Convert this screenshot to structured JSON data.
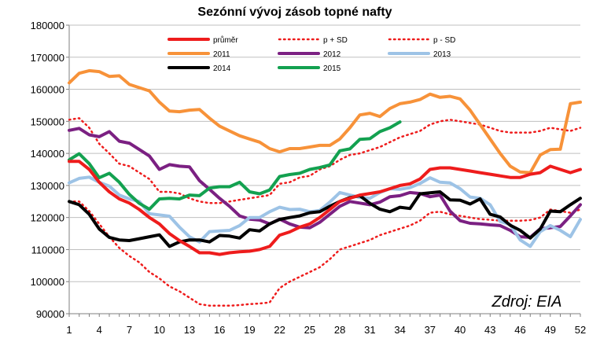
{
  "chart_data": {
    "type": "line",
    "title": "Sezónní vývoj zásob topné nafty",
    "xlabel": "",
    "ylabel": "",
    "xlim": [
      1,
      52
    ],
    "ylim": [
      90000,
      180000
    ],
    "x_ticks": [
      1,
      4,
      7,
      10,
      13,
      16,
      19,
      22,
      25,
      28,
      31,
      34,
      37,
      40,
      43,
      46,
      49,
      52
    ],
    "y_ticks": [
      90000,
      100000,
      110000,
      120000,
      130000,
      140000,
      150000,
      160000,
      170000,
      180000
    ],
    "y_tick_labels": [
      "90000",
      "100000",
      "110000",
      "120000",
      "130000",
      "140000",
      "150000",
      "160000",
      "170000",
      "180000"
    ],
    "grid": "horizontal",
    "legend_position": "top",
    "source": "Zdroj: EIA",
    "series": [
      {
        "name": "průměr",
        "color": "#ee1c1c",
        "style": "solid",
        "x": [
          1,
          2,
          3,
          4,
          5,
          6,
          7,
          8,
          9,
          10,
          11,
          12,
          13,
          14,
          15,
          16,
          17,
          18,
          19,
          20,
          21,
          22,
          23,
          24,
          25,
          26,
          27,
          28,
          29,
          30,
          31,
          32,
          33,
          34,
          35,
          36,
          37,
          38,
          39,
          40,
          41,
          42,
          43,
          44,
          45,
          46,
          47,
          48,
          49,
          50,
          51,
          52
        ],
        "values": [
          137500,
          137500,
          135000,
          131000,
          128000,
          125800,
          124500,
          122500,
          120000,
          118000,
          115000,
          112800,
          111000,
          109000,
          109000,
          108500,
          109000,
          109300,
          109500,
          110000,
          111000,
          114500,
          115500,
          117000,
          118000,
          120000,
          122500,
          125000,
          126000,
          127000,
          127500,
          128000,
          129000,
          130000,
          130500,
          132000,
          135000,
          135500,
          135500,
          135000,
          134500,
          134000,
          133500,
          133000,
          132500,
          132500,
          133500,
          134000,
          136000,
          135000,
          134000,
          135000
        ]
      },
      {
        "name": "p + SD",
        "color": "#ee1c1c",
        "style": "dotted",
        "x": [
          1,
          2,
          3,
          4,
          5,
          6,
          7,
          8,
          9,
          10,
          11,
          12,
          13,
          14,
          15,
          16,
          17,
          18,
          19,
          20,
          21,
          22,
          23,
          24,
          25,
          26,
          27,
          28,
          29,
          30,
          31,
          32,
          33,
          34,
          35,
          36,
          37,
          38,
          39,
          40,
          41,
          42,
          43,
          44,
          45,
          46,
          47,
          48,
          49,
          50,
          51,
          52
        ],
        "values": [
          150500,
          151000,
          148000,
          143000,
          140000,
          136800,
          136000,
          134000,
          132000,
          128000,
          128000,
          127500,
          126000,
          125000,
          124500,
          124500,
          125000,
          125500,
          126000,
          126500,
          127000,
          130500,
          131000,
          132500,
          133000,
          135000,
          136000,
          138000,
          139500,
          140000,
          141000,
          142000,
          143500,
          145000,
          146000,
          147000,
          149000,
          150000,
          150500,
          150000,
          149500,
          149000,
          148000,
          147000,
          146500,
          146500,
          146500,
          147000,
          148000,
          147500,
          147000,
          148000
        ]
      },
      {
        "name": "p - SD",
        "color": "#ee1c1c",
        "style": "dotted",
        "x": [
          1,
          2,
          3,
          4,
          5,
          6,
          7,
          8,
          9,
          10,
          11,
          12,
          13,
          14,
          15,
          16,
          17,
          18,
          19,
          20,
          21,
          22,
          23,
          24,
          25,
          26,
          27,
          28,
          29,
          30,
          31,
          32,
          33,
          34,
          35,
          36,
          37,
          38,
          39,
          40,
          41,
          42,
          43,
          44,
          45,
          46,
          47,
          48,
          49,
          50,
          51,
          52
        ],
        "values": [
          125000,
          125000,
          122000,
          118000,
          114000,
          110500,
          108000,
          106000,
          103000,
          101000,
          98500,
          97000,
          95000,
          93000,
          92500,
          92500,
          92500,
          92700,
          93000,
          93200,
          93500,
          98000,
          100000,
          101500,
          103000,
          104500,
          107000,
          110000,
          111000,
          112000,
          113000,
          114500,
          115500,
          116500,
          117500,
          119000,
          121500,
          121800,
          121000,
          120500,
          120000,
          119500,
          119300,
          119000,
          119000,
          119000,
          119200,
          120000,
          122500,
          122000,
          121500,
          122500
        ]
      },
      {
        "name": "2011",
        "color": "#f79239",
        "style": "solid",
        "x": [
          1,
          2,
          3,
          4,
          5,
          6,
          7,
          8,
          9,
          10,
          11,
          12,
          13,
          14,
          15,
          16,
          17,
          18,
          19,
          20,
          21,
          22,
          23,
          24,
          25,
          26,
          27,
          28,
          29,
          30,
          31,
          32,
          33,
          34,
          35,
          36,
          37,
          38,
          39,
          40,
          41,
          42,
          43,
          44,
          45,
          46,
          47,
          48,
          49,
          50,
          51,
          52
        ],
        "values": [
          162000,
          165000,
          165800,
          165500,
          164000,
          164200,
          161500,
          160500,
          159500,
          156000,
          153200,
          153000,
          153500,
          153700,
          151000,
          148500,
          147000,
          145500,
          144500,
          143500,
          141500,
          140500,
          141500,
          141500,
          142000,
          142500,
          142500,
          144500,
          148000,
          152000,
          152500,
          151500,
          154000,
          155500,
          156000,
          156800,
          158500,
          157500,
          157800,
          157000,
          153500,
          149000,
          144500,
          140000,
          136000,
          134200,
          134000,
          139500,
          141200,
          141300,
          155500,
          156000
        ]
      },
      {
        "name": "2012",
        "color": "#7b2082",
        "style": "solid",
        "x": [
          1,
          2,
          3,
          4,
          5,
          6,
          7,
          8,
          9,
          10,
          11,
          12,
          13,
          14,
          15,
          16,
          17,
          18,
          19,
          20,
          21,
          22,
          23,
          24,
          25,
          26,
          27,
          28,
          29,
          30,
          31,
          32,
          33,
          34,
          35,
          36,
          37,
          38,
          39,
          40,
          41,
          42,
          43,
          44,
          45,
          46,
          47,
          48,
          49,
          50,
          51,
          52
        ],
        "values": [
          147200,
          147800,
          145800,
          145200,
          146800,
          143800,
          143200,
          141200,
          139200,
          135000,
          136500,
          136000,
          135800,
          131500,
          128800,
          126000,
          123500,
          120500,
          119500,
          119200,
          118000,
          119500,
          118000,
          117000,
          116800,
          118500,
          121000,
          123500,
          125000,
          124500,
          124000,
          124800,
          126500,
          126800,
          127800,
          127500,
          126500,
          127000,
          122000,
          119000,
          118200,
          118000,
          117700,
          117500,
          116000,
          114000,
          113800,
          116500,
          116800,
          117200,
          120500,
          124000
        ]
      },
      {
        "name": "2013",
        "color": "#9dc3e6",
        "style": "solid",
        "x": [
          1,
          2,
          3,
          4,
          5,
          6,
          7,
          8,
          9,
          10,
          11,
          12,
          13,
          14,
          15,
          16,
          17,
          18,
          19,
          20,
          21,
          22,
          23,
          24,
          25,
          26,
          27,
          28,
          29,
          30,
          31,
          32,
          33,
          34,
          35,
          36,
          37,
          38,
          39,
          40,
          41,
          42,
          43,
          44,
          45,
          46,
          47,
          48,
          49,
          50,
          51,
          52
        ],
        "values": [
          130800,
          132200,
          132600,
          131000,
          129800,
          127000,
          125800,
          125000,
          121200,
          120800,
          120400,
          117000,
          114000,
          112400,
          115600,
          115800,
          116000,
          117500,
          120000,
          120000,
          121800,
          123200,
          122500,
          122600,
          121800,
          122200,
          124800,
          127800,
          127000,
          126300,
          126000,
          127800,
          129000,
          128800,
          129300,
          130600,
          132400,
          131000,
          130800,
          129000,
          126400,
          126000,
          124000,
          118800,
          117800,
          113000,
          111000,
          115600,
          117500,
          116000,
          114000,
          119400
        ]
      },
      {
        "name": "2014",
        "color": "#000000",
        "style": "solid",
        "x": [
          1,
          2,
          3,
          4,
          5,
          6,
          7,
          8,
          9,
          10,
          11,
          12,
          13,
          14,
          15,
          16,
          17,
          18,
          19,
          20,
          21,
          22,
          23,
          24,
          25,
          26,
          27,
          28,
          29,
          30,
          31,
          32,
          33,
          34,
          35,
          36,
          37,
          38,
          39,
          40,
          41,
          42,
          43,
          44,
          45,
          46,
          47,
          48,
          49,
          50,
          51,
          52
        ],
        "values": [
          125000,
          124000,
          121000,
          116400,
          113800,
          113000,
          112800,
          113400,
          114000,
          114600,
          111000,
          112400,
          113000,
          113000,
          112400,
          114400,
          114200,
          113600,
          116200,
          115800,
          118000,
          119400,
          120000,
          120500,
          121500,
          121800,
          123500,
          125000,
          126200,
          126800,
          124400,
          122600,
          121800,
          123200,
          122800,
          127400,
          127700,
          128000,
          125500,
          125400,
          124200,
          125800,
          121000,
          120200,
          117600,
          116000,
          113600,
          116400,
          122000,
          121800,
          124000,
          126000
        ]
      },
      {
        "name": "2015",
        "color": "#13a150",
        "style": "solid",
        "x": [
          1,
          2,
          3,
          4,
          5,
          6,
          7,
          8,
          9,
          10,
          11,
          12,
          13,
          14,
          15,
          16,
          17,
          18,
          19,
          20,
          21,
          22,
          23,
          24,
          25,
          26,
          27,
          28,
          29,
          30,
          31,
          32,
          33,
          34
        ],
        "values": [
          138000,
          139900,
          136800,
          132400,
          133800,
          131000,
          127200,
          124400,
          122600,
          125800,
          126000,
          125800,
          127000,
          126800,
          129200,
          129600,
          129600,
          131000,
          128000,
          127400,
          128600,
          132800,
          133400,
          133800,
          135000,
          135600,
          136400,
          140800,
          141400,
          144400,
          144600,
          146800,
          148000,
          149800
        ]
      }
    ]
  }
}
